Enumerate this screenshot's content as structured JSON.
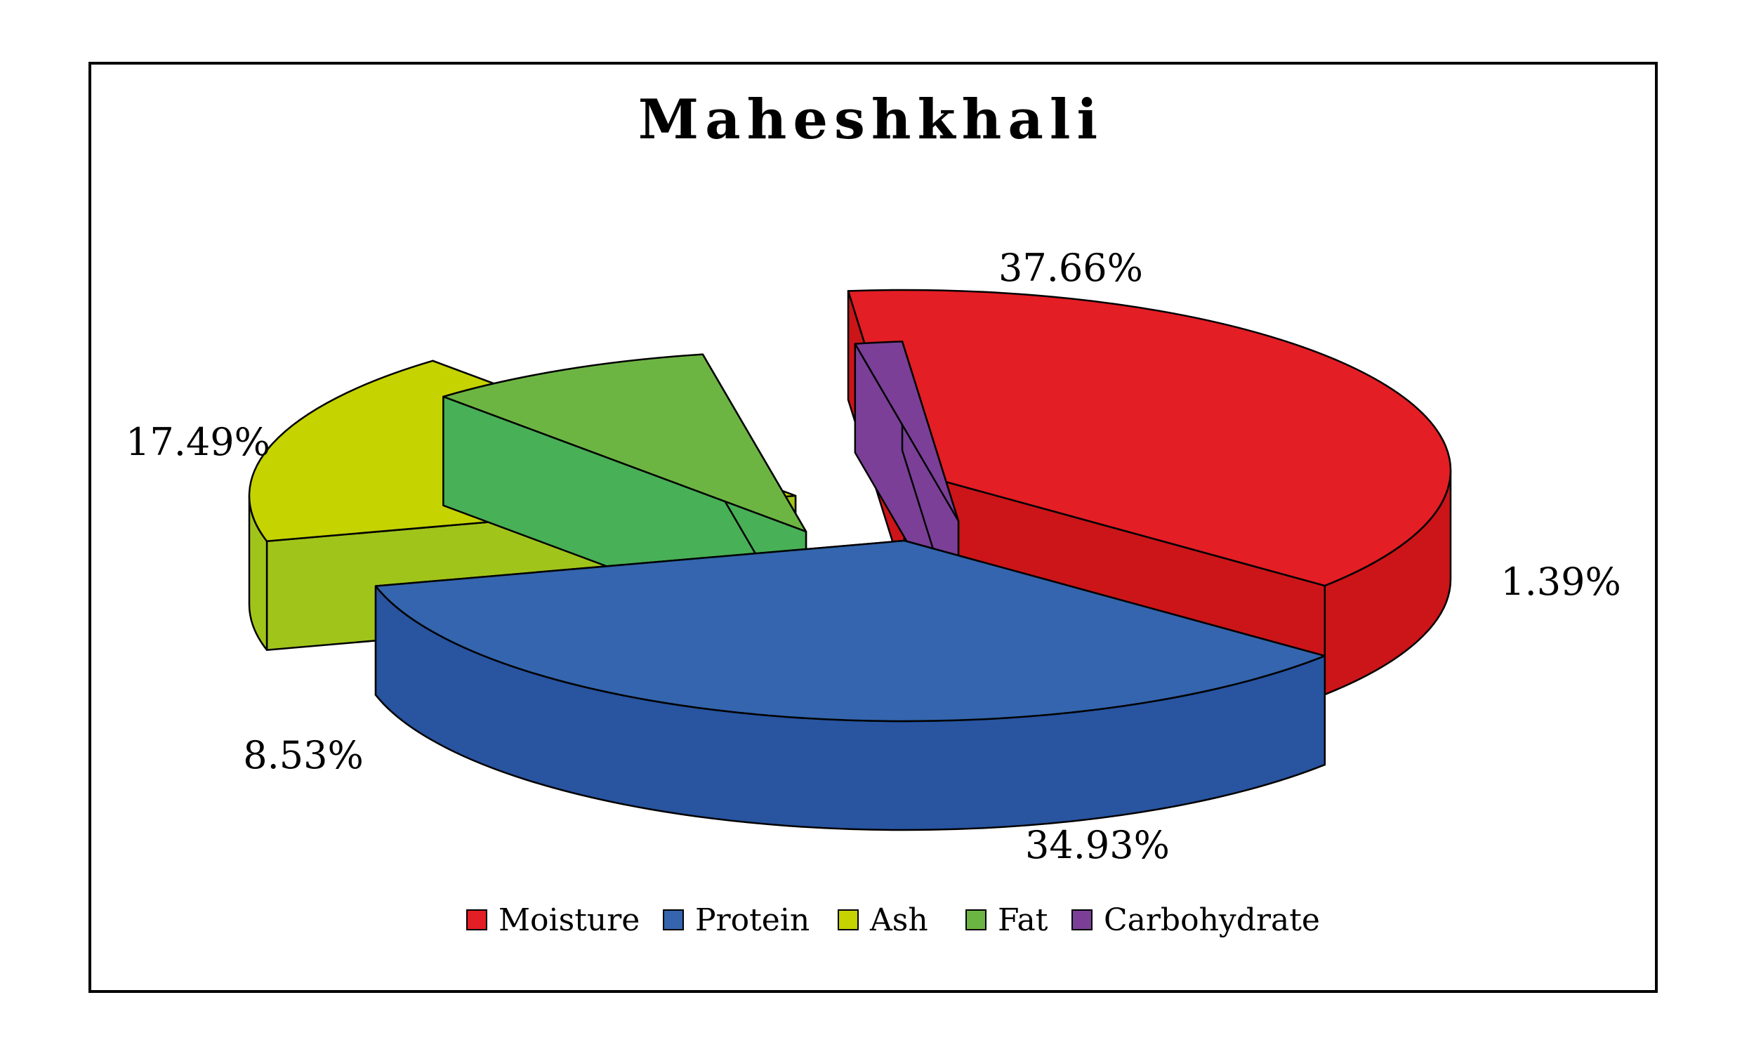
{
  "chart_data": {
    "type": "pie",
    "title": "Maheshkhali",
    "categories": [
      "Moisture",
      "Protein",
      "Ash",
      "Fat",
      "Carbohydrate"
    ],
    "values": [
      37.66,
      34.93,
      17.49,
      8.53,
      1.39
    ],
    "data_labels": [
      "37.66%",
      "34.93%",
      "17.49%",
      "8.53%",
      "1.39%"
    ],
    "colors": [
      "#E31E24",
      "#3465AE",
      "#C5D300",
      "#6DB543",
      "#7B3F98"
    ],
    "side_colors": [
      "#CB1519",
      "#2854A0",
      "#A1C41B",
      "#48B056",
      "#7B3F98"
    ],
    "legend_position": "bottom",
    "style": "3d-exploded"
  }
}
